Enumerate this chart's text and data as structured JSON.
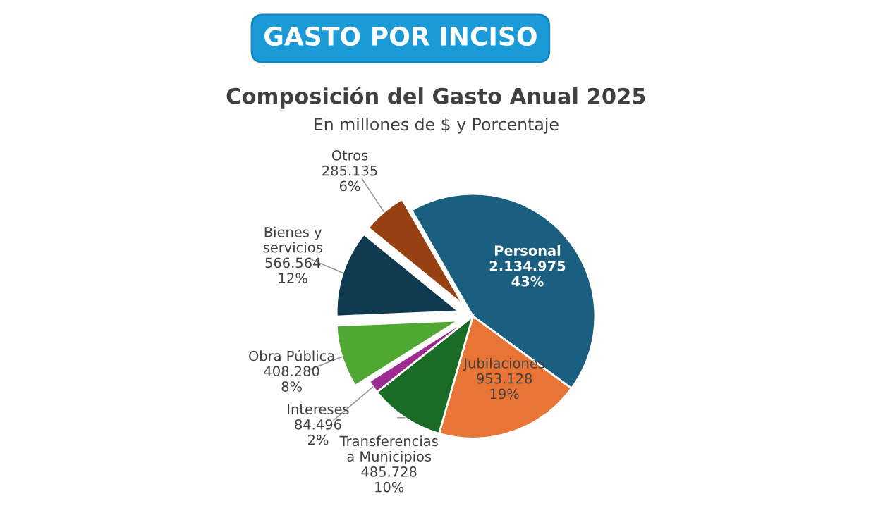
{
  "chart_data": {
    "type": "pie",
    "title": "GASTO POR INCISO",
    "subtitle": "Composición del Gasto Anual 2025",
    "annotations": [
      "En millones de $ y Porcentaje"
    ],
    "categories": [
      "Personal",
      "Jubilaciones",
      "Transferencias\na Municipios",
      "Intereses",
      "Obra Pública",
      "Bienes y\nservicios",
      "Otros"
    ],
    "values": [
      2134975,
      953128,
      485728,
      84496,
      408280,
      566564,
      285135
    ],
    "value_labels": [
      "2.134.975\n43%",
      "953.128\n19%",
      "485.728\n10%",
      "84.496\n2%",
      "408.280\n8%",
      "566.564\n12%",
      "285.135\n6%"
    ],
    "colors": [
      "#1a5f80",
      "#e87535",
      "#1a6b25",
      "#9c2a90",
      "#4ea832",
      "#0f3a50",
      "#974012"
    ],
    "legend": false
  }
}
